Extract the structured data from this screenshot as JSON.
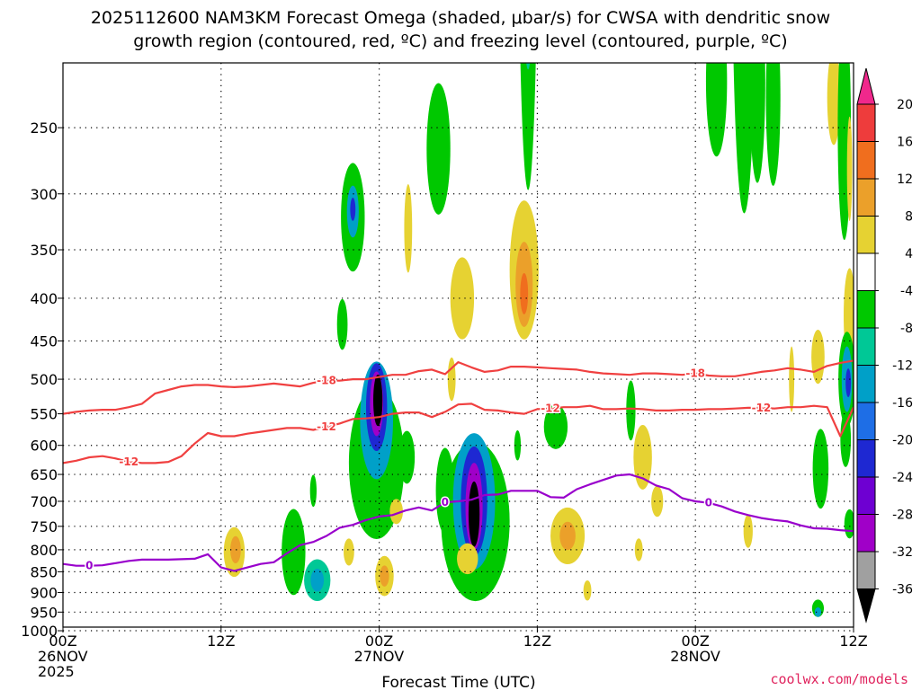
{
  "chart_data": {
    "type": "time-height cross section",
    "title_line1": "2025112600 NAM3KM Forecast Omega (shaded, μbar/s) for CWSA with dendritic snow",
    "title_line2": "growth region (contoured, red, ºC) and freezing level (contoured, purple, ºC)",
    "xlabel": "Forecast Time (UTC)",
    "x_ticks": [
      {
        "hour": 0,
        "lines": [
          "00Z",
          "26NOV",
          "2025"
        ]
      },
      {
        "hour": 12,
        "lines": [
          "12Z"
        ]
      },
      {
        "hour": 24,
        "lines": [
          "00Z",
          "27NOV"
        ]
      },
      {
        "hour": 36,
        "lines": [
          "12Z"
        ]
      },
      {
        "hour": 48,
        "lines": [
          "00Z",
          "28NOV"
        ]
      },
      {
        "hour": 60,
        "lines": [
          "12Z"
        ]
      }
    ],
    "xlim": [
      0,
      60
    ],
    "y_levels": [
      "250",
      "300",
      "350",
      "400",
      "450",
      "500",
      "550",
      "600",
      "650",
      "700",
      "750",
      "800",
      "850",
      "900",
      "950",
      "1000"
    ],
    "ylim": [
      200,
      1025
    ],
    "colorbar": {
      "labels": [
        "20",
        "16",
        "12",
        "8",
        "4",
        "-4",
        "-8",
        "-12",
        "-16",
        "-20",
        "-24",
        "-28",
        "-32",
        "-36"
      ],
      "colors": [
        "#f0288c",
        "#ee3c3c",
        "#f06e1e",
        "#eba02a",
        "#e6d232",
        "#e6e632",
        "#ffffff",
        "#00c800",
        "#00c896",
        "#00a0c8",
        "#1e6ee6",
        "#1e28d2",
        "#6e00d2",
        "#a000c8",
        "#a0a0a0",
        "#000000"
      ]
    },
    "freezing_level_0C": {
      "label": "0",
      "color": "#9900cc",
      "hours": [
        0,
        1,
        2,
        3,
        4,
        5,
        6,
        7,
        8,
        9,
        10,
        11,
        12,
        13,
        14,
        15,
        16,
        17,
        18,
        19,
        20,
        21,
        22,
        23,
        24,
        25,
        26,
        27,
        28,
        29,
        30,
        31,
        32,
        33,
        34,
        35,
        36,
        37,
        38,
        39,
        40,
        41,
        42,
        43,
        44,
        45,
        46,
        47,
        48,
        49,
        50,
        51,
        52,
        53,
        54,
        55,
        56,
        57,
        58,
        59,
        60
      ],
      "pressures": [
        832,
        836,
        836,
        835,
        830,
        825,
        822,
        822,
        822,
        821,
        820,
        810,
        840,
        848,
        840,
        832,
        828,
        808,
        790,
        783,
        770,
        753,
        747,
        737,
        730,
        727,
        718,
        712,
        718,
        702,
        700,
        697,
        688,
        687,
        680,
        680,
        680,
        692,
        693,
        677,
        668,
        660,
        652,
        650,
        657,
        670,
        677,
        694,
        700,
        703,
        710,
        720,
        727,
        733,
        737,
        740,
        748,
        754,
        755,
        758,
        760
      ]
    },
    "dgz_isotherms": [
      {
        "label": "-12",
        "color": "#f04040",
        "hours": [
          0,
          1,
          2,
          3,
          4,
          5,
          6,
          7,
          8,
          9,
          10,
          11,
          12,
          13,
          14,
          15,
          16,
          17,
          18,
          19,
          20,
          21,
          22,
          23,
          24,
          25,
          26,
          27,
          28,
          29,
          30,
          31,
          32,
          33,
          34,
          35,
          36,
          37,
          38,
          39,
          40,
          41,
          42,
          43,
          44,
          45,
          46,
          47,
          48,
          49,
          50,
          51,
          52,
          53,
          54,
          55,
          56,
          57,
          58,
          59,
          60
        ],
        "pressures": [
          630,
          626,
          620,
          618,
          622,
          628,
          630,
          630,
          628,
          618,
          597,
          580,
          585,
          585,
          581,
          578,
          575,
          572,
          572,
          575,
          570,
          565,
          558,
          557,
          555,
          550,
          548,
          548,
          555,
          547,
          536,
          535,
          544,
          545,
          548,
          550,
          543,
          542,
          540,
          540,
          538,
          543,
          543,
          542,
          543,
          545,
          545,
          544,
          544,
          543,
          543,
          542,
          541,
          541,
          542,
          540,
          540,
          538,
          540,
          585,
          540
        ]
      },
      {
        "label": "-18",
        "color": "#f04040",
        "hours": [
          0,
          1,
          2,
          3,
          4,
          5,
          6,
          7,
          8,
          9,
          10,
          11,
          12,
          13,
          14,
          15,
          16,
          17,
          18,
          19,
          20,
          21,
          22,
          23,
          24,
          25,
          26,
          27,
          28,
          29,
          30,
          31,
          32,
          33,
          34,
          35,
          36,
          37,
          38,
          39,
          40,
          41,
          42,
          43,
          44,
          45,
          46,
          47,
          48,
          49,
          50,
          51,
          52,
          53,
          54,
          55,
          56,
          57,
          58,
          59,
          60
        ],
        "pressures": [
          550,
          547,
          545,
          544,
          544,
          540,
          535,
          520,
          515,
          510,
          508,
          508,
          510,
          511,
          510,
          508,
          506,
          508,
          510,
          505,
          502,
          502,
          500,
          500,
          497,
          494,
          494,
          489,
          487,
          493,
          477,
          484,
          490,
          488,
          483,
          483,
          484,
          485,
          486,
          487,
          490,
          492,
          493,
          494,
          492,
          492,
          493,
          494,
          492,
          495,
          496,
          496,
          493,
          490,
          488,
          485,
          487,
          490,
          482,
          478,
          475
        ]
      }
    ],
    "omega_cells": [
      {
        "hour": 13.0,
        "p": 805,
        "hw": 0.8,
        "hp": 110,
        "value": 6
      },
      {
        "hour": 13.1,
        "p": 800,
        "hw": 0.4,
        "hp": 60,
        "value": 9
      },
      {
        "hour": 17.5,
        "p": 805,
        "hw": 0.9,
        "hp": 190,
        "value": -6
      },
      {
        "hour": 19.3,
        "p": 870,
        "hw": 1.0,
        "hp": 100,
        "value": -9
      },
      {
        "hour": 19.3,
        "p": 870,
        "hw": 0.5,
        "hp": 55,
        "value": -14
      },
      {
        "hour": 21.7,
        "p": 805,
        "hw": 0.4,
        "hp": 60,
        "value": 6
      },
      {
        "hour": 22.0,
        "p": 320,
        "hw": 0.9,
        "hp": 95,
        "value": -7
      },
      {
        "hour": 22.0,
        "p": 315,
        "hw": 0.45,
        "hp": 45,
        "value": -13
      },
      {
        "hour": 22.0,
        "p": 313,
        "hw": 0.2,
        "hp": 20,
        "value": -22
      },
      {
        "hour": 21.2,
        "p": 430,
        "hw": 0.4,
        "hp": 60,
        "value": -6
      },
      {
        "hour": 23.8,
        "p": 630,
        "hw": 2.1,
        "hp": 260,
        "value": -6
      },
      {
        "hour": 23.8,
        "p": 560,
        "hw": 1.25,
        "hp": 180,
        "value": -13
      },
      {
        "hour": 23.8,
        "p": 540,
        "hw": 0.8,
        "hp": 130,
        "value": -20
      },
      {
        "hour": 23.8,
        "p": 535,
        "hw": 0.5,
        "hp": 95,
        "value": -28
      },
      {
        "hour": 23.9,
        "p": 530,
        "hw": 0.35,
        "hp": 75,
        "value": -40
      },
      {
        "hour": 24.4,
        "p": 860,
        "hw": 0.7,
        "hp": 95,
        "value": 6
      },
      {
        "hour": 24.4,
        "p": 860,
        "hw": 0.35,
        "hp": 50,
        "value": 9
      },
      {
        "hour": 26.1,
        "p": 620,
        "hw": 0.6,
        "hp": 90,
        "value": -6
      },
      {
        "hour": 26.2,
        "p": 330,
        "hw": 0.3,
        "hp": 80,
        "value": 6
      },
      {
        "hour": 25.3,
        "p": 720,
        "hw": 0.5,
        "hp": 50,
        "value": 6
      },
      {
        "hour": 28.5,
        "p": 265,
        "hw": 0.9,
        "hp": 95,
        "value": -6
      },
      {
        "hour": 30.3,
        "p": 400,
        "hw": 0.9,
        "hp": 90,
        "value": 6
      },
      {
        "hour": 29.0,
        "p": 680,
        "hw": 0.7,
        "hp": 160,
        "value": -6
      },
      {
        "hour": 29.5,
        "p": 500,
        "hw": 0.3,
        "hp": 60,
        "value": 6
      },
      {
        "hour": 31.3,
        "p": 740,
        "hw": 2.6,
        "hp": 320,
        "value": -6
      },
      {
        "hour": 31.2,
        "p": 700,
        "hw": 1.6,
        "hp": 260,
        "value": -13
      },
      {
        "hour": 31.2,
        "p": 700,
        "hw": 1.0,
        "hp": 210,
        "value": -22
      },
      {
        "hour": 31.2,
        "p": 710,
        "hw": 0.65,
        "hp": 170,
        "value": -30
      },
      {
        "hour": 31.2,
        "p": 725,
        "hw": 0.42,
        "hp": 130,
        "value": -40
      },
      {
        "hour": 30.7,
        "p": 820,
        "hw": 0.8,
        "hp": 70,
        "value": 6
      },
      {
        "hour": 35.0,
        "p": 370,
        "hw": 1.1,
        "hp": 140,
        "value": 6
      },
      {
        "hour": 35.0,
        "p": 385,
        "hw": 0.65,
        "hp": 90,
        "value": 10
      },
      {
        "hour": 35.0,
        "p": 395,
        "hw": 0.3,
        "hp": 45,
        "value": 14
      },
      {
        "hour": 35.3,
        "p": 115,
        "hw": 0.75,
        "hp": 170,
        "value": -6
      },
      {
        "hour": 35.3,
        "p": 180,
        "hw": 0.3,
        "hp": 60,
        "value": -9
      },
      {
        "hour": 37.4,
        "p": 570,
        "hw": 0.9,
        "hp": 70,
        "value": -6
      },
      {
        "hour": 38.3,
        "p": 770,
        "hw": 1.3,
        "hp": 120,
        "value": 6
      },
      {
        "hour": 38.3,
        "p": 770,
        "hw": 0.6,
        "hp": 60,
        "value": 10
      },
      {
        "hour": 39.8,
        "p": 895,
        "hw": 0.3,
        "hp": 50,
        "value": 6
      },
      {
        "hour": 44.0,
        "p": 620,
        "hw": 0.7,
        "hp": 110,
        "value": 6
      },
      {
        "hour": 45.1,
        "p": 700,
        "hw": 0.45,
        "hp": 60,
        "value": 6
      },
      {
        "hour": 43.1,
        "p": 545,
        "hw": 0.35,
        "hp": 90,
        "value": -6
      },
      {
        "hour": 43.7,
        "p": 800,
        "hw": 0.3,
        "hp": 50,
        "value": 6
      },
      {
        "hour": 51.7,
        "p": 150,
        "hw": 0.9,
        "hp": 190,
        "value": -6
      },
      {
        "hour": 49.6,
        "p": 220,
        "hw": 0.8,
        "hp": 90,
        "value": -6
      },
      {
        "hour": 52.7,
        "p": 220,
        "hw": 0.6,
        "hp": 120,
        "value": -6
      },
      {
        "hour": 52.0,
        "p": 760,
        "hw": 0.35,
        "hp": 70,
        "value": 6
      },
      {
        "hour": 53.9,
        "p": 230,
        "hw": 0.55,
        "hp": 110,
        "value": -6
      },
      {
        "hour": 57.3,
        "p": 470,
        "hw": 0.5,
        "hp": 70,
        "value": 6
      },
      {
        "hour": 55.3,
        "p": 500,
        "hw": 0.2,
        "hp": 90,
        "value": 6
      },
      {
        "hour": 57.5,
        "p": 640,
        "hw": 0.6,
        "hp": 140,
        "value": -6
      },
      {
        "hour": 58.5,
        "p": 230,
        "hw": 0.5,
        "hp": 60,
        "value": 6
      },
      {
        "hour": 59.3,
        "p": 250,
        "hw": 0.5,
        "hp": 150,
        "value": -6
      },
      {
        "hour": 59.7,
        "p": 280,
        "hw": 0.2,
        "hp": 80,
        "value": 6
      },
      {
        "hour": 59.7,
        "p": 420,
        "hw": 0.45,
        "hp": 110,
        "value": 6
      },
      {
        "hour": 59.5,
        "p": 500,
        "hw": 0.65,
        "hp": 130,
        "value": -6
      },
      {
        "hour": 59.5,
        "p": 500,
        "hw": 0.4,
        "hp": 90,
        "value": -13
      },
      {
        "hour": 59.6,
        "p": 505,
        "hw": 0.2,
        "hp": 40,
        "value": -20
      },
      {
        "hour": 59.4,
        "p": 590,
        "hw": 0.4,
        "hp": 90,
        "value": -6
      },
      {
        "hour": 59.7,
        "p": 745,
        "hw": 0.4,
        "hp": 60,
        "value": -6
      },
      {
        "hour": 57.3,
        "p": 940,
        "hw": 0.45,
        "hp": 45,
        "value": -6
      },
      {
        "hour": 57.3,
        "p": 950,
        "hw": 0.25,
        "hp": 25,
        "value": -13
      },
      {
        "hour": 19.0,
        "p": 680,
        "hw": 0.25,
        "hp": 60,
        "value": -6
      },
      {
        "hour": 34.5,
        "p": 600,
        "hw": 0.25,
        "hp": 50,
        "value": -6
      },
      {
        "hour": 33.5,
        "p": 715,
        "hw": 0.2,
        "hp": 30,
        "value": -6
      }
    ]
  },
  "credit": "coolwx.com/models"
}
